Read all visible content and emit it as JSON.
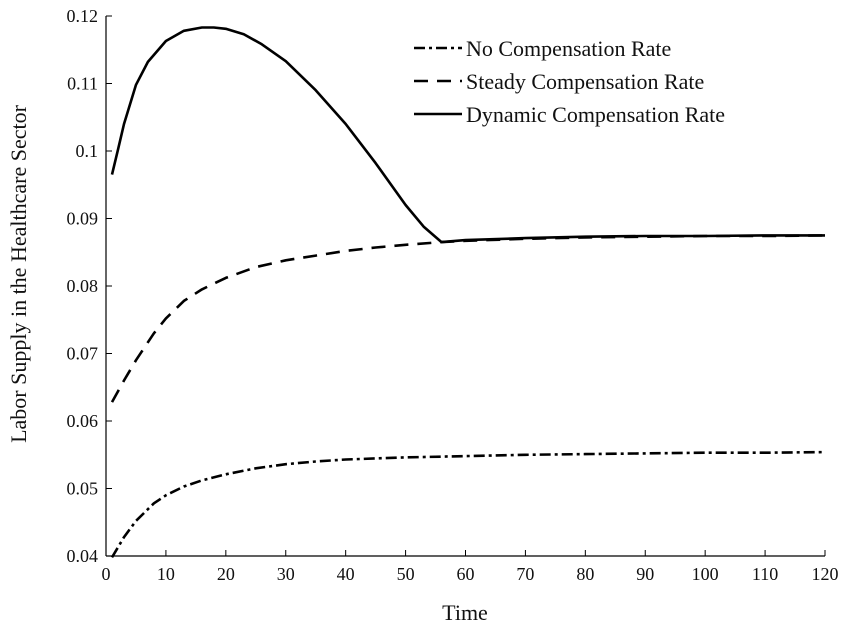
{
  "chart_data": {
    "type": "line",
    "xlabel": "Time",
    "ylabel": "Labor Supply in the Healthcare Sector",
    "xlim": [
      0,
      120
    ],
    "ylim": [
      0.04,
      0.12
    ],
    "xticks": [
      0,
      10,
      20,
      30,
      40,
      50,
      60,
      70,
      80,
      90,
      100,
      110,
      120
    ],
    "xtick_labels": [
      "0",
      "10",
      "20",
      "30",
      "40",
      "50",
      "60",
      "70",
      "80",
      "90",
      "100",
      "110",
      "120"
    ],
    "yticks": [
      0.04,
      0.05,
      0.06,
      0.07,
      0.08,
      0.09,
      0.1,
      0.11,
      0.12
    ],
    "ytick_labels": [
      "0.04",
      "0.05",
      "0.06",
      "0.07",
      "0.08",
      "0.09",
      "0.1",
      "0.11",
      "0.12"
    ],
    "grid": false,
    "legend_position": "top-right",
    "series": [
      {
        "name": "No Compensation Rate",
        "style": "dash-dot",
        "color": "#000000",
        "x": [
          1,
          3,
          5,
          8,
          10,
          13,
          16,
          20,
          25,
          30,
          35,
          40,
          50,
          60,
          70,
          80,
          90,
          100,
          110,
          120
        ],
        "y": [
          0.0398,
          0.0428,
          0.0452,
          0.0478,
          0.049,
          0.0503,
          0.0512,
          0.0521,
          0.053,
          0.0536,
          0.054,
          0.0543,
          0.0546,
          0.0548,
          0.055,
          0.0551,
          0.0552,
          0.0553,
          0.0553,
          0.0554
        ]
      },
      {
        "name": "Steady Compensation Rate",
        "style": "dashed",
        "color": "#000000",
        "x": [
          1,
          3,
          5,
          8,
          10,
          13,
          16,
          20,
          25,
          30,
          35,
          40,
          45,
          50,
          56,
          60,
          70,
          80,
          90,
          100,
          110,
          120
        ],
        "y": [
          0.0628,
          0.066,
          0.069,
          0.073,
          0.0752,
          0.0778,
          0.0795,
          0.0812,
          0.0828,
          0.0838,
          0.0845,
          0.0852,
          0.0857,
          0.0861,
          0.0865,
          0.0867,
          0.087,
          0.0872,
          0.0873,
          0.0874,
          0.0874,
          0.0875
        ]
      },
      {
        "name": "Dynamic Compensation Rate",
        "style": "solid",
        "color": "#000000",
        "x": [
          1,
          2,
          3,
          5,
          7,
          10,
          13,
          16,
          18,
          20,
          23,
          26,
          30,
          35,
          40,
          45,
          50,
          53,
          56,
          60,
          70,
          80,
          90,
          100,
          110,
          120
        ],
        "y": [
          0.0965,
          0.1002,
          0.104,
          0.1098,
          0.1132,
          0.1163,
          0.1178,
          0.1183,
          0.1183,
          0.1181,
          0.1173,
          0.1158,
          0.1133,
          0.109,
          0.104,
          0.0982,
          0.092,
          0.0888,
          0.0865,
          0.0868,
          0.0871,
          0.0873,
          0.0874,
          0.0874,
          0.0875,
          0.0875
        ]
      }
    ]
  }
}
